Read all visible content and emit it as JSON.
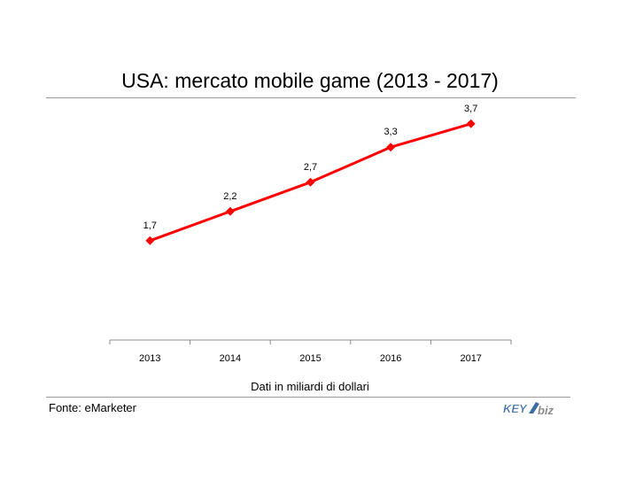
{
  "chart_data": {
    "type": "line",
    "title": "USA: mercato mobile game (2013 - 2017)",
    "categories": [
      "2013",
      "2014",
      "2015",
      "2016",
      "2017"
    ],
    "series": [
      {
        "values": [
          1.7,
          2.2,
          2.7,
          3.3,
          3.7
        ],
        "labels": [
          "1,7",
          "2,2",
          "2,7",
          "3,3",
          "3,7"
        ],
        "color": "#ff0000"
      }
    ],
    "xlabel": "Dati in miliardi di dollari",
    "ylabel": "",
    "ylim": [
      0,
      4.0
    ],
    "grid": false,
    "legend": "none"
  },
  "footer": {
    "source": "Fonte: eMarketer",
    "logo_text": "KEY4biz"
  },
  "colors": {
    "line": "#ff0000",
    "axis": "#888888",
    "logo_blue": "#3a6ea5",
    "logo_gray": "#8a8a8a"
  }
}
